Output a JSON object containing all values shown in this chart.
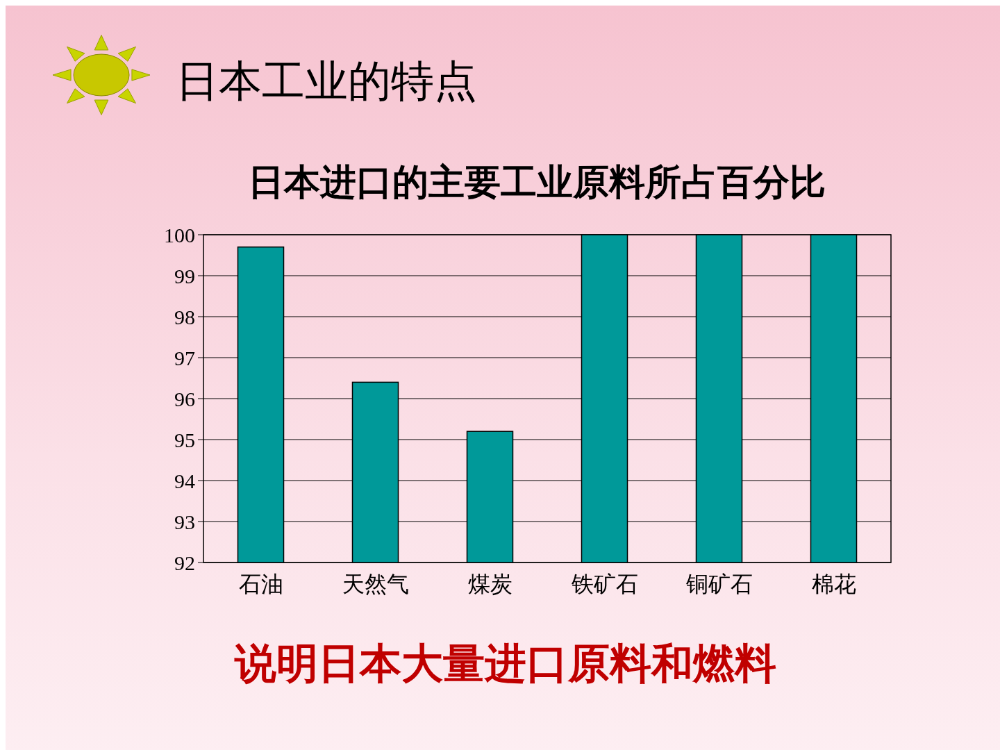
{
  "chart_data": {
    "type": "bar",
    "title": "日本工业的特点",
    "subtitle": "日本进口的主要工业原料所占百分比",
    "categories": [
      "石油",
      "天然气",
      "煤炭",
      "铁矿石",
      "铜矿石",
      "棉花"
    ],
    "values": [
      99.7,
      96.4,
      95.2,
      100,
      100,
      100
    ],
    "color": "#009999",
    "ylim": [
      92,
      100
    ],
    "yticks": [
      92,
      93,
      94,
      95,
      96,
      97,
      98,
      99,
      100
    ],
    "grid": "y",
    "annotations": [
      "说明日本大量进口原料和燃料"
    ]
  }
}
